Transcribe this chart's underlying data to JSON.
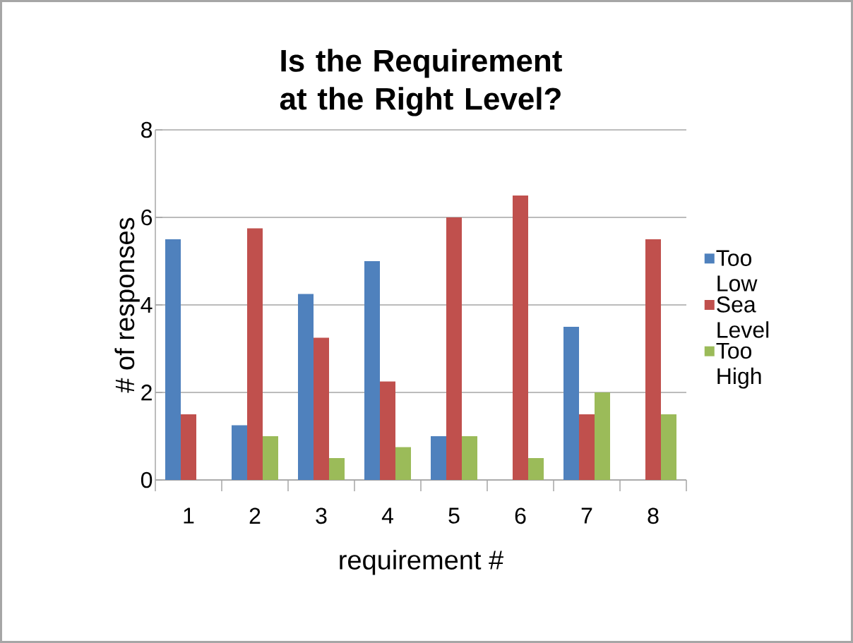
{
  "chart_data": {
    "type": "bar",
    "title": "Is the Requirement at the Right Level?",
    "xlabel": "requirement #",
    "ylabel": "# of responses",
    "categories": [
      "1",
      "2",
      "3",
      "4",
      "5",
      "6",
      "7",
      "8"
    ],
    "series": [
      {
        "name": "Too Low",
        "color": "#4f81bd",
        "values": [
          5.5,
          1.25,
          4.25,
          5.0,
          1.0,
          null,
          3.5,
          null
        ]
      },
      {
        "name": "Sea Level",
        "color": "#c0504d",
        "values": [
          1.5,
          5.75,
          3.25,
          2.25,
          6.0,
          6.5,
          1.5,
          5.5
        ]
      },
      {
        "name": "Too High",
        "color": "#9bbb59",
        "values": [
          null,
          1.0,
          0.5,
          0.75,
          1.0,
          0.5,
          2.0,
          1.5
        ]
      }
    ],
    "ylim": [
      0,
      8
    ],
    "yticks": [
      0,
      2,
      4,
      6,
      8
    ],
    "grid": "y",
    "legend": "right"
  }
}
